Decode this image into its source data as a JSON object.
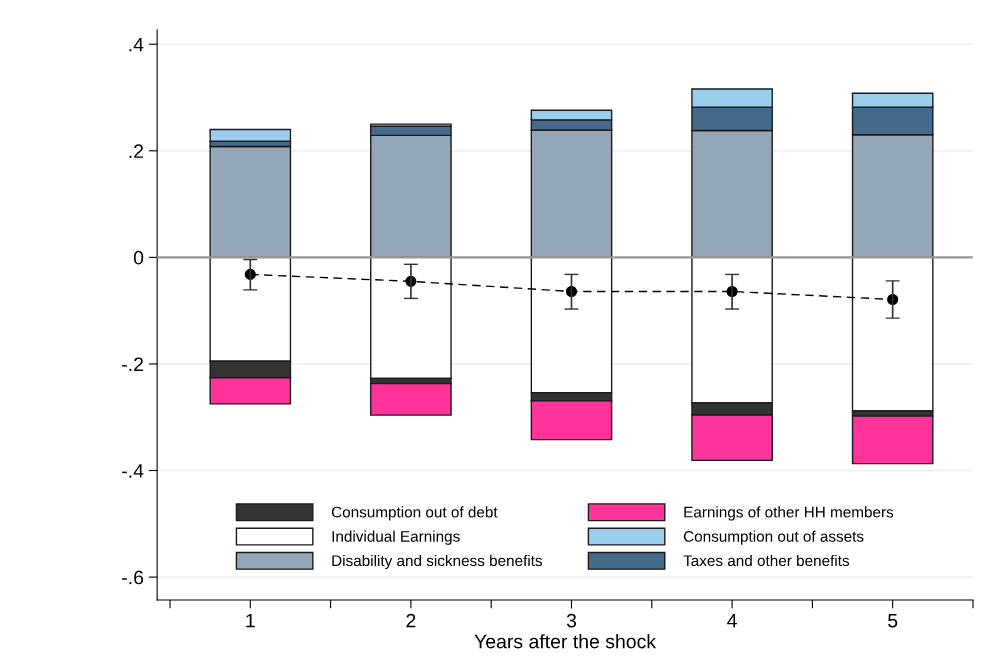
{
  "chart_data": {
    "type": "bar",
    "stacked": true,
    "xlabel": "Years after the shock",
    "x": [
      1,
      2,
      3,
      4,
      5
    ],
    "series": [
      {
        "name": "Individual Earnings",
        "color": "#ffffff",
        "values": [
          -0.195,
          -0.227,
          -0.254,
          -0.273,
          -0.288
        ]
      },
      {
        "name": "Consumption out of debt",
        "color": "#333333",
        "values": [
          -0.031,
          -0.01,
          -0.015,
          -0.023,
          -0.01
        ]
      },
      {
        "name": "Earnings of other HH members",
        "color": "#ff3399",
        "values": [
          -0.049,
          -0.059,
          -0.073,
          -0.085,
          -0.089
        ]
      },
      {
        "name": "Disability and sickness benefits",
        "color": "#94a7b8",
        "values": [
          0.208,
          0.229,
          0.239,
          0.238,
          0.23
        ]
      },
      {
        "name": "Taxes and other benefits",
        "color": "#466a8c",
        "values": [
          0.01,
          0.017,
          0.019,
          0.044,
          0.052
        ]
      },
      {
        "name": "Consumption out of assets",
        "color": "#99ceee",
        "values": [
          0.022,
          0.004,
          0.018,
          0.034,
          0.026
        ]
      },
      {
        "type": "line",
        "color": "#000000",
        "marker": "circle",
        "line_style": "dashed",
        "values": [
          -0.032,
          -0.045,
          -0.064,
          -0.064,
          -0.079
        ],
        "errors": [
          [
            -0.061,
            -0.004
          ],
          [
            -0.077,
            -0.013
          ],
          [
            -0.097,
            -0.032
          ],
          [
            -0.097,
            -0.032
          ],
          [
            -0.114,
            -0.044
          ]
        ]
      }
    ],
    "xlim": [
      0.42,
      5.5
    ],
    "xticks": [
      {
        "value": 0.5,
        "label": null
      },
      1,
      {
        "value": 1.5,
        "label": null
      },
      2,
      {
        "value": 2.5,
        "label": null
      },
      3,
      {
        "value": 3.5,
        "label": null
      },
      4,
      {
        "value": 4.5,
        "label": null
      },
      5,
      {
        "value": 5.5,
        "label": null
      }
    ],
    "ylim": [
      -0.643,
      0.427
    ],
    "yticks": [
      {
        "value": -0.6,
        "label": "-.6"
      },
      {
        "value": -0.4,
        "label": "-.4"
      },
      {
        "value": -0.2,
        "label": "-.2"
      },
      0,
      {
        "value": 0.2,
        "label": ".2"
      },
      {
        "value": 0.4,
        "label": ".4"
      }
    ],
    "ref_lines": [
      {
        "axis": "y",
        "value": 0,
        "color": "#999999"
      }
    ],
    "grid": "y",
    "legend": "bottom"
  }
}
